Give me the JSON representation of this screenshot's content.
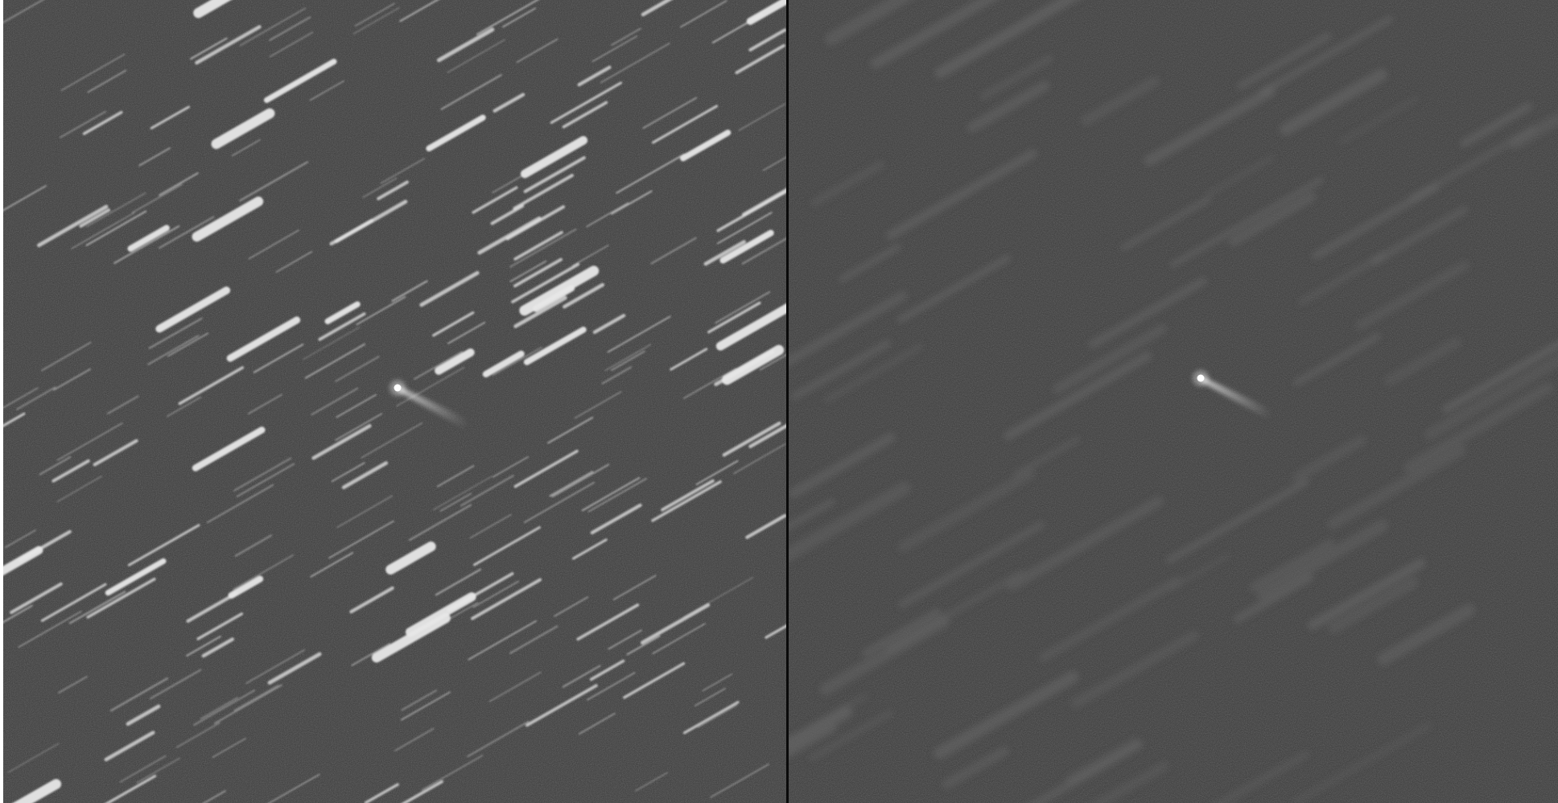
{
  "figure": {
    "panels": [
      {
        "id": "left",
        "description_key": "star-trailed-frame",
        "background_color": "#3a3a3a",
        "streak_color": "#e8e8e8",
        "comet_color": "#ffffff"
      },
      {
        "id": "right",
        "description_key": "comet-tracked-frame",
        "background_color": "#393939",
        "streak_color": "#6a6a6a",
        "comet_color": "#ffffff"
      }
    ],
    "colors": {
      "frame": "#ffffff",
      "divider": "#0a0a0a"
    }
  }
}
